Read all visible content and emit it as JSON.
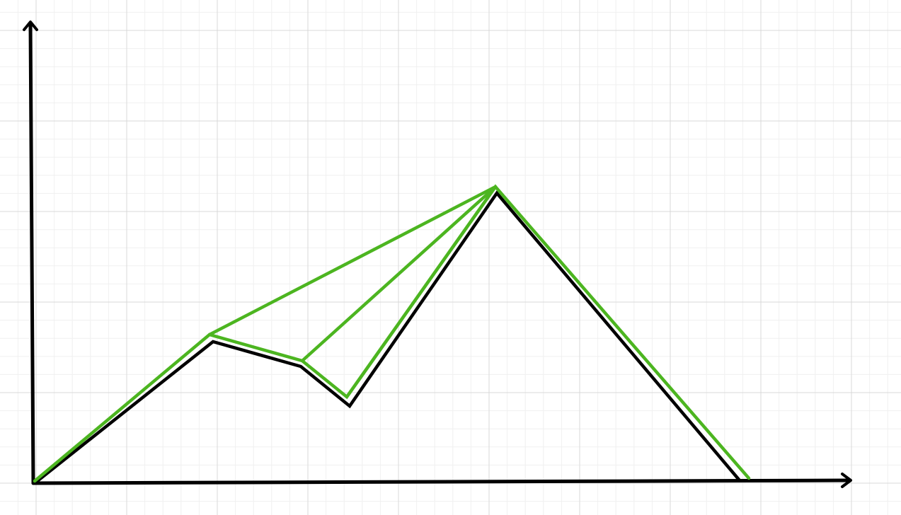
{
  "colors": {
    "background": "#ffffff",
    "grid_minor": "#f0f0f0",
    "grid_major": "#d9d9d9",
    "axes": "#000000",
    "original_path": "#000000",
    "simplified_path": "#4cb520"
  },
  "paths": {
    "original": {
      "color_name": "black",
      "point_count": 7
    },
    "simplified": {
      "color_name": "green",
      "point_count": 7
    },
    "connecting_segments": {
      "color_name": "green",
      "count": 3
    }
  }
}
